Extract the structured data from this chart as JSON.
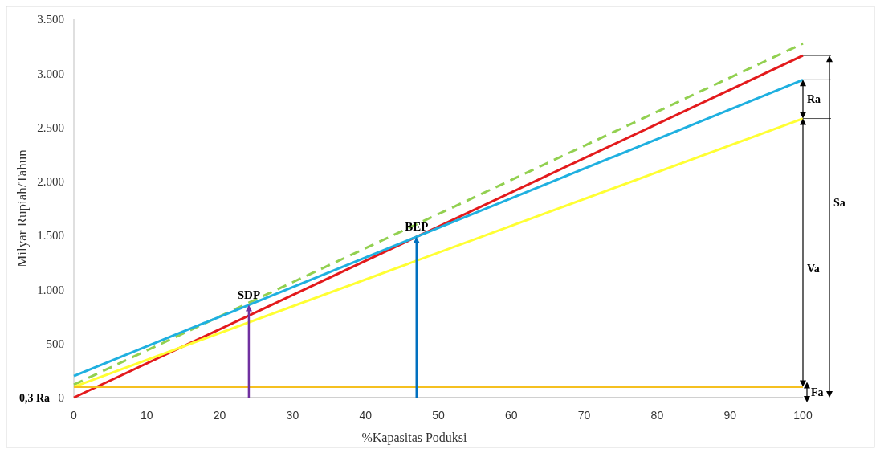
{
  "chart_data": {
    "type": "line",
    "xlabel": "%Kapasitas Poduksi",
    "ylabel": "Milyar Rupiah/Tahun",
    "x": [
      0,
      100
    ],
    "series": [
      {
        "color": "#92d050",
        "values": [
          120,
          3276
        ],
        "line_style": "dashed"
      },
      {
        "color": "#e31a1c",
        "values": [
          0,
          3164
        ]
      },
      {
        "color": "#1fb0e0",
        "values": [
          200,
          2940
        ]
      },
      {
        "color": "#ffff33",
        "values": [
          100,
          2582
        ]
      },
      {
        "color": "#f5c020",
        "values": [
          100,
          100
        ]
      }
    ],
    "xlim": [
      0,
      100
    ],
    "xticks": [
      0,
      10,
      20,
      30,
      40,
      50,
      60,
      70,
      80,
      90,
      100
    ],
    "ylim": [
      0,
      3500
    ],
    "yticks": [
      {
        "value": 0,
        "label": "0"
      },
      {
        "value": 500,
        "label": "500"
      },
      {
        "value": 1000,
        "label": "1.000"
      },
      {
        "value": 1500,
        "label": "1.500"
      },
      {
        "value": 2000,
        "label": "2.000"
      },
      {
        "value": 2500,
        "label": "2.500"
      },
      {
        "value": 3000,
        "label": "3.000"
      },
      {
        "value": 3500,
        "label": "3.500"
      }
    ],
    "marker": "none",
    "annotations": [
      {
        "text": "SDP",
        "x": 24,
        "y": 858
      },
      {
        "text": "BEP",
        "x": 47,
        "y": 1488
      },
      "Ra",
      "Va",
      "Sa",
      "Fa",
      "0,3 Ra"
    ]
  }
}
